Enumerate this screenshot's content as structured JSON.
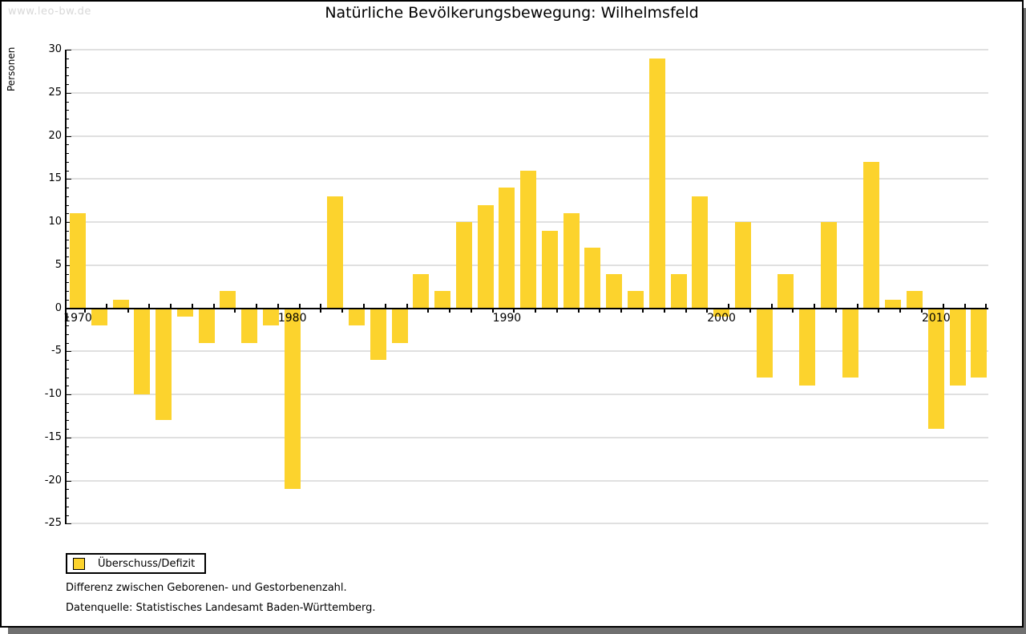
{
  "watermark": "www.leo-bw.de",
  "title": "Natürliche Bevölkerungsbewegung: Wilhelmsfeld",
  "ylabel": "Personen",
  "legend": {
    "label": "Überschuss/Defizit"
  },
  "notes": [
    "Differenz zwischen Geborenen- und Gestorbenenzahl.",
    "Datenquelle: Statistisches Landesamt Baden-Württemberg."
  ],
  "colors": {
    "bar": "#fcd32d",
    "grid": "#e0e0e0",
    "axis": "#000000",
    "watermark": "#d8d8d8",
    "shadow": "#707070"
  },
  "chart_data": {
    "type": "bar",
    "title": "Natürliche Bevölkerungsbewegung: Wilhelmsfeld",
    "xlabel": "",
    "ylabel": "Personen",
    "categories": [
      1970,
      1971,
      1972,
      1973,
      1974,
      1975,
      1976,
      1977,
      1978,
      1979,
      1980,
      1981,
      1982,
      1983,
      1984,
      1985,
      1986,
      1987,
      1988,
      1989,
      1990,
      1991,
      1992,
      1993,
      1994,
      1995,
      1996,
      1997,
      1998,
      1999,
      2000,
      2001,
      2002,
      2003,
      2004,
      2005,
      2006,
      2007,
      2008,
      2009,
      2010,
      2011,
      2012
    ],
    "series": [
      {
        "name": "Überschuss/Defizit",
        "values": [
          11,
          -2,
          1,
          -10,
          -13,
          -1,
          -4,
          2,
          -4,
          -2,
          -21,
          0,
          13,
          -2,
          -6,
          -4,
          4,
          2,
          10,
          12,
          14,
          16,
          9,
          11,
          7,
          4,
          2,
          29,
          4,
          13,
          -1,
          10,
          -8,
          4,
          -9,
          10,
          -8,
          17,
          1,
          2,
          -14,
          -9,
          -8
        ]
      }
    ],
    "ylim": [
      -25,
      30
    ],
    "ytick_step": 5,
    "ytick_minor_step": 1,
    "xtick_labels": [
      1970,
      1980,
      1990,
      2000,
      2010
    ],
    "grid": true,
    "legend_position": "bottom-left"
  }
}
